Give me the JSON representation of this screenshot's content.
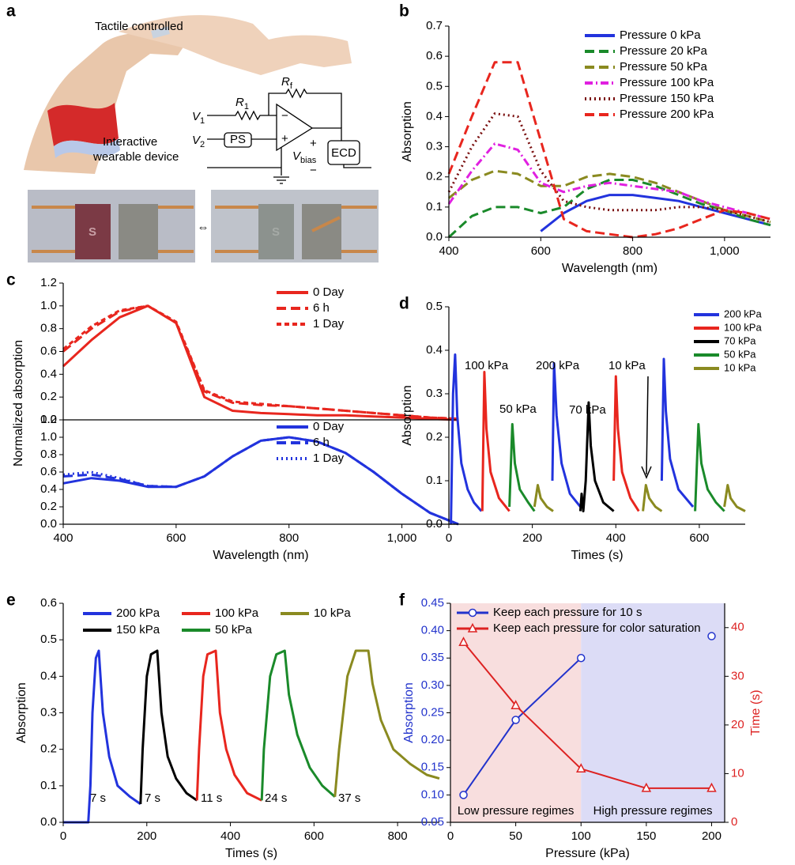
{
  "figure_a": {
    "panel_label": "a",
    "caption_top": "Tactile controlled",
    "caption_device": [
      "Interactive",
      "wearable device"
    ],
    "circuit": {
      "v1": {
        "main": "V",
        "sub": "1"
      },
      "v2": {
        "main": "V",
        "sub": "2"
      },
      "r1": {
        "main": "R",
        "sub": "1"
      },
      "rf": {
        "main": "R",
        "sub": "f"
      },
      "ps": "PS",
      "ecd": "ECD",
      "vbias": {
        "main": "V",
        "sub": "bias"
      },
      "plus": "+",
      "minus": "−"
    },
    "photo_letter": "S",
    "swap_symbol": "⇔"
  },
  "chart_data": [
    {
      "type": "line",
      "panel_label": "b",
      "xlabel": "Wavelength (nm)",
      "ylabel": "Absorption",
      "legend": "upper right",
      "x": [
        400,
        450,
        500,
        550,
        600,
        650,
        700,
        750,
        800,
        850,
        900,
        950,
        1000,
        1050,
        1100
      ],
      "xlim": [
        400,
        1100
      ],
      "xticks": [
        400,
        600,
        800,
        {
          "value": 1000,
          "label": "1,000"
        }
      ],
      "ylim": [
        0,
        0.7
      ],
      "yticks": [
        {
          "value": 0,
          "label": "0.0"
        },
        0.1,
        0.2,
        0.3,
        0.4,
        0.5,
        0.6,
        0.7
      ],
      "series": [
        {
          "name": "Pressure 0 kPa",
          "color": "#2233dd",
          "style": "solid",
          "values": [
            null,
            null,
            null,
            null,
            0.02,
            0.08,
            0.12,
            0.14,
            0.14,
            0.13,
            0.12,
            0.1,
            0.08,
            0.06,
            0.04
          ]
        },
        {
          "name": "Pressure 20 kPa",
          "color": "#1a8a2a",
          "style": "dashed",
          "values": [
            0.0,
            0.07,
            0.1,
            0.1,
            0.08,
            0.1,
            0.16,
            0.19,
            0.19,
            0.17,
            0.14,
            0.11,
            0.09,
            0.06,
            0.04
          ]
        },
        {
          "name": "Pressure 50 kPa",
          "color": "#8a8a20",
          "style": "dashed",
          "values": [
            0.13,
            0.19,
            0.22,
            0.21,
            0.17,
            0.17,
            0.2,
            0.21,
            0.2,
            0.18,
            0.15,
            0.12,
            0.09,
            0.07,
            0.05
          ]
        },
        {
          "name": "Pressure 100 kPa",
          "color": "#e020e0",
          "style": "dashdot",
          "values": [
            0.11,
            0.22,
            0.31,
            0.29,
            0.18,
            0.15,
            0.17,
            0.18,
            0.17,
            0.16,
            0.15,
            0.12,
            0.1,
            0.08,
            0.06
          ]
        },
        {
          "name": "Pressure 150 kPa",
          "color": "#7a1010",
          "style": "dotted",
          "values": [
            0.15,
            0.3,
            0.41,
            0.4,
            0.22,
            0.12,
            0.1,
            0.09,
            0.09,
            0.09,
            0.1,
            0.1,
            0.09,
            0.07,
            0.05
          ]
        },
        {
          "name": "Pressure 200 kPa",
          "color": "#e8261e",
          "style": "dashed",
          "values": [
            0.21,
            0.4,
            0.58,
            0.58,
            0.32,
            0.06,
            0.02,
            0.01,
            0.0,
            0.01,
            0.03,
            0.06,
            0.09,
            0.08,
            0.06
          ]
        }
      ]
    },
    {
      "type": "line",
      "panel_label": "c",
      "ylabel": "Normalized absorption",
      "legend": "upper right",
      "x": [
        400,
        450,
        500,
        550,
        600,
        650,
        700,
        750,
        800,
        850,
        900,
        950,
        1000,
        1050,
        1100
      ],
      "xlim": [
        400,
        1100
      ],
      "ylim": [
        0,
        1.2
      ],
      "yticks": [
        {
          "value": 0,
          "label": "0.0"
        },
        0.2,
        0.4,
        0.6,
        0.8,
        {
          "value": 1,
          "label": "1.0"
        },
        1.2
      ],
      "series": [
        {
          "name": "0 Day",
          "color": "#e8261e",
          "style": "solid",
          "values": [
            0.47,
            0.7,
            0.9,
            1.0,
            0.85,
            0.2,
            0.08,
            0.06,
            0.05,
            0.04,
            0.04,
            0.03,
            0.02,
            0.01,
            0.0
          ]
        },
        {
          "name": "6 h",
          "color": "#e8261e",
          "style": "dashed",
          "values": [
            0.6,
            0.8,
            0.95,
            1.0,
            0.85,
            0.25,
            0.15,
            0.13,
            0.12,
            0.1,
            0.08,
            0.06,
            0.04,
            0.02,
            0.01
          ]
        },
        {
          "name": "1 Day",
          "color": "#e8261e",
          "style": "shortdash",
          "values": [
            0.62,
            0.82,
            0.96,
            1.0,
            0.86,
            0.26,
            0.16,
            0.14,
            0.12,
            0.1,
            0.08,
            0.06,
            0.04,
            0.02,
            0.01
          ]
        }
      ]
    },
    {
      "type": "line",
      "xlabel": "Wavelength (nm)",
      "legend": "upper right",
      "x": [
        400,
        450,
        500,
        550,
        600,
        650,
        700,
        750,
        800,
        850,
        900,
        950,
        1000,
        1050,
        1100
      ],
      "xlim": [
        400,
        1100
      ],
      "xticks": [
        400,
        600,
        800,
        {
          "value": 1000,
          "label": "1,000"
        }
      ],
      "ylim": [
        0,
        1.2
      ],
      "yticks": [
        {
          "value": 0,
          "label": "0.0"
        },
        0.2,
        0.4,
        0.6,
        0.8,
        {
          "value": 1,
          "label": "1.0"
        },
        1.2
      ],
      "series": [
        {
          "name": "0 Day",
          "color": "#2233dd",
          "style": "solid",
          "values": [
            0.47,
            0.53,
            0.5,
            0.43,
            0.43,
            0.55,
            0.78,
            0.96,
            1.0,
            0.95,
            0.82,
            0.6,
            0.35,
            0.13,
            0.0
          ]
        },
        {
          "name": "6 h",
          "color": "#2233dd",
          "style": "dashed",
          "values": [
            0.55,
            0.57,
            0.52,
            0.44,
            0.43,
            0.55,
            0.78,
            0.96,
            1.0,
            0.95,
            0.82,
            0.6,
            0.35,
            0.13,
            0.0
          ]
        },
        {
          "name": "1 Day",
          "color": "#2233dd",
          "style": "dotted",
          "values": [
            0.57,
            0.6,
            0.53,
            0.44,
            0.43,
            0.55,
            0.78,
            0.96,
            1.0,
            0.95,
            0.82,
            0.6,
            0.35,
            0.13,
            0.0
          ]
        }
      ]
    },
    {
      "type": "line",
      "panel_label": "d",
      "xlabel": "Times (s)",
      "ylabel": "Absorption",
      "legend": "upper right",
      "xlim": [
        0,
        710
      ],
      "xticks": [
        0,
        200,
        400,
        600
      ],
      "ylim": [
        0,
        0.5
      ],
      "yticks": [
        {
          "value": 0,
          "label": "0.0"
        },
        0.1,
        0.2,
        0.3,
        0.4,
        0.5
      ],
      "annotations": [
        "100 kPa",
        "50 kPa",
        "200 kPa",
        "70 kPa",
        "10 kPa"
      ],
      "series": [
        {
          "name": "200 kPa",
          "color": "#2233dd",
          "style": "solid",
          "x": [
            5,
            10,
            15,
            20,
            30,
            45,
            60,
            78,
            null,
            248,
            252,
            258,
            270,
            290,
            315,
            null,
            510,
            515,
            520,
            530,
            550,
            585
          ],
          "values": [
            0,
            0.3,
            0.39,
            0.25,
            0.14,
            0.08,
            0.05,
            0.03,
            null,
            0.1,
            0.37,
            0.25,
            0.14,
            0.07,
            0.04,
            null,
            0.1,
            0.38,
            0.26,
            0.15,
            0.08,
            0.04
          ]
        },
        {
          "name": "100 kPa",
          "color": "#e8261e",
          "style": "solid",
          "x": [
            80,
            85,
            90,
            100,
            120,
            145,
            null,
            395,
            400,
            405,
            415,
            435,
            455
          ],
          "values": [
            0.03,
            0.35,
            0.22,
            0.12,
            0.06,
            0.03,
            null,
            0.1,
            0.34,
            0.22,
            0.12,
            0.06,
            0.03
          ]
        },
        {
          "name": "70 kPa",
          "color": "#000000",
          "style": "solid",
          "x": [
            315,
            318,
            322,
            328,
            335,
            340,
            350,
            370,
            395
          ],
          "values": [
            0.03,
            0.07,
            0.03,
            0.1,
            0.28,
            0.18,
            0.1,
            0.05,
            0.03
          ]
        },
        {
          "name": "50 kPa",
          "color": "#1a8a2a",
          "style": "solid",
          "x": [
            145,
            152,
            158,
            170,
            190,
            205,
            null,
            590,
            598,
            605,
            620,
            640,
            660
          ],
          "values": [
            0.04,
            0.23,
            0.14,
            0.08,
            0.05,
            0.03,
            null,
            0.03,
            0.23,
            0.14,
            0.08,
            0.05,
            0.03
          ]
        },
        {
          "name": "10 kPa",
          "color": "#8a8a20",
          "style": "solid",
          "x": [
            205,
            213,
            220,
            235,
            250,
            null,
            465,
            472,
            480,
            495,
            510,
            null,
            660,
            668,
            675,
            690,
            710
          ],
          "values": [
            0.04,
            0.09,
            0.06,
            0.04,
            0.03,
            null,
            0.03,
            0.09,
            0.06,
            0.04,
            0.03,
            null,
            0.04,
            0.09,
            0.06,
            0.04,
            0.03
          ]
        }
      ]
    },
    {
      "type": "line",
      "panel_label": "e",
      "xlabel": "Times (s)",
      "ylabel": "Absorption",
      "legend": "upper left",
      "xlim": [
        0,
        900
      ],
      "xticks": [
        0,
        200,
        400,
        600,
        800
      ],
      "ylim": [
        0,
        0.6
      ],
      "yticks": [
        {
          "value": 0,
          "label": "0.0"
        },
        0.1,
        0.2,
        0.3,
        0.4,
        0.5,
        0.6
      ],
      "annotations": [
        "7 s",
        "7 s",
        "11 s",
        "24 s",
        "37 s"
      ],
      "series": [
        {
          "name": "200 kPa",
          "color": "#2233dd",
          "style": "solid",
          "x": [
            0,
            60,
            65,
            70,
            78,
            85,
            95,
            110,
            130,
            160,
            185
          ],
          "values": [
            0,
            0,
            0.1,
            0.3,
            0.45,
            0.47,
            0.3,
            0.18,
            0.1,
            0.07,
            0.05
          ]
        },
        {
          "name": "150 kPa",
          "color": "#000000",
          "style": "solid",
          "x": [
            185,
            190,
            200,
            210,
            225,
            235,
            250,
            270,
            295,
            320
          ],
          "values": [
            0.05,
            0.2,
            0.4,
            0.46,
            0.47,
            0.3,
            0.18,
            0.12,
            0.08,
            0.06
          ]
        },
        {
          "name": "100 kPa",
          "color": "#e8261e",
          "style": "solid",
          "x": [
            320,
            325,
            335,
            345,
            365,
            375,
            390,
            410,
            440,
            475
          ],
          "values": [
            0.06,
            0.2,
            0.4,
            0.46,
            0.47,
            0.3,
            0.2,
            0.13,
            0.08,
            0.06
          ]
        },
        {
          "name": "50 kPa",
          "color": "#1a8a2a",
          "style": "solid",
          "x": [
            475,
            480,
            495,
            510,
            530,
            540,
            560,
            590,
            620,
            650
          ],
          "values": [
            0.06,
            0.2,
            0.4,
            0.46,
            0.47,
            0.35,
            0.24,
            0.15,
            0.1,
            0.07
          ]
        },
        {
          "name": "10 kPa",
          "color": "#8a8a20",
          "style": "solid",
          "x": [
            650,
            660,
            680,
            700,
            730,
            740,
            760,
            790,
            830,
            870,
            900
          ],
          "values": [
            0.07,
            0.2,
            0.4,
            0.47,
            0.47,
            0.38,
            0.28,
            0.2,
            0.16,
            0.13,
            0.12
          ]
        }
      ]
    },
    {
      "type": "line",
      "panel_label": "f",
      "xlabel": "Pressure (kPa)",
      "ylabel": "Absorption",
      "y2label": "Time (s)",
      "legend": "upper left",
      "x": [
        10,
        50,
        100,
        150,
        200
      ],
      "xlim": [
        0,
        210
      ],
      "xticks": [
        0,
        50,
        100,
        150,
        200
      ],
      "ylim": [
        0.05,
        0.45
      ],
      "yticks": [
        0.05,
        {
          "value": 0.1,
          "label": "0.10"
        },
        0.15,
        {
          "value": 0.2,
          "label": "0.20"
        },
        0.25,
        {
          "value": 0.3,
          "label": "0.30"
        },
        0.35,
        {
          "value": 0.4,
          "label": "0.40"
        },
        0.45
      ],
      "y2lim": [
        0,
        45
      ],
      "y2ticks": [
        0,
        10,
        20,
        30,
        40
      ],
      "regions": [
        {
          "from": 0,
          "to": 100,
          "label": "Low pressure regimes",
          "color": "#f8dede"
        },
        {
          "from": 100,
          "to": 210,
          "label": "High pressure regimes",
          "color": "#dcdcf6"
        }
      ],
      "series": [
        {
          "name": "Keep each pressure for 10 s",
          "color": "#2233cc",
          "style": "solid",
          "marker": "circle",
          "values": [
            0.1,
            0.237,
            0.35,
            null,
            0.39
          ]
        },
        {
          "name": "Keep each pressure for color saturation",
          "color": "#dd2222",
          "style": "solid",
          "marker": "triangle",
          "axis": "y2",
          "values": [
            37,
            24,
            11,
            7,
            7
          ]
        }
      ]
    }
  ]
}
